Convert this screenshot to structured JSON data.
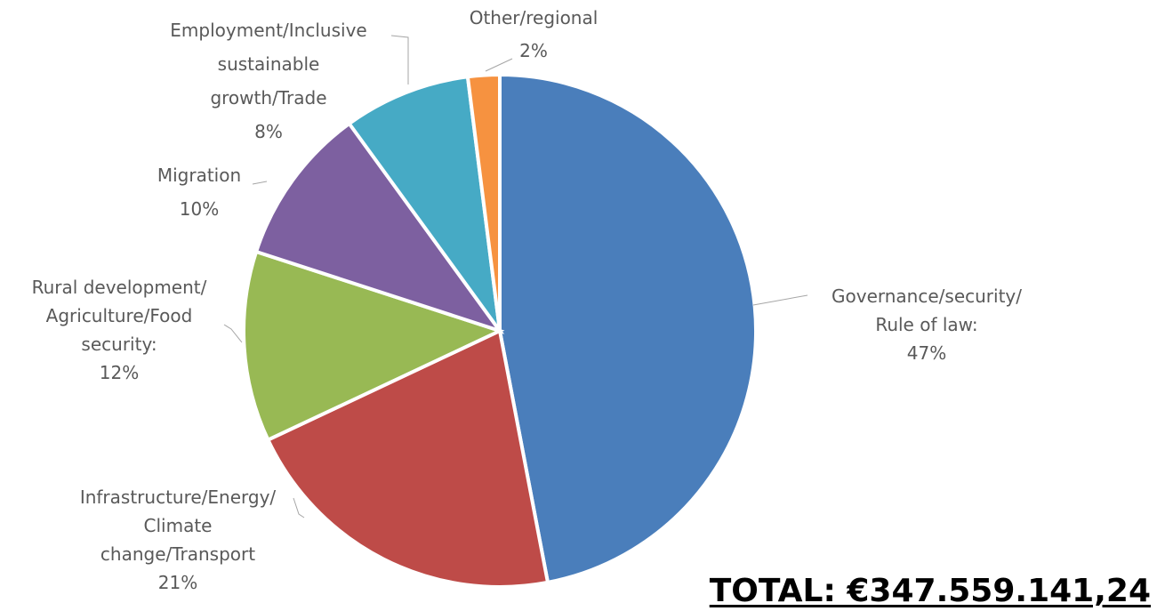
{
  "chart_data": {
    "type": "pie",
    "title": "",
    "categories": [
      "Governance/security/ Rule of law",
      "Infrastructure/Energy/ Climate change/Transport",
      "Rural development/ Agriculture/Food security",
      "Migration",
      "Employment/Inclusive sustainable growth/Trade",
      "Other/regional"
    ],
    "values": [
      47,
      21,
      12,
      10,
      8,
      2
    ],
    "unit": "%",
    "colors": [
      "#4a7ebb",
      "#be4b48",
      "#98b954",
      "#7d60a0",
      "#46aac5",
      "#f69240"
    ],
    "legend": "none",
    "start_angle": "12 o'clock",
    "direction": "clockwise",
    "data_labels": [
      {
        "lines": [
          "Governance/security/",
          "Rule of law:",
          "47%"
        ]
      },
      {
        "lines": [
          "Infrastructure/Energy/",
          "Climate",
          "change/Transport",
          "21%"
        ]
      },
      {
        "lines": [
          "Rural development/",
          "Agriculture/Food",
          "security:",
          "12%"
        ]
      },
      {
        "lines": [
          "Migration",
          "10%"
        ]
      },
      {
        "lines": [
          "Employment/Inclusive",
          "sustainable",
          "growth/Trade",
          "8%"
        ]
      },
      {
        "lines": [
          "Other/regional",
          "2%"
        ]
      }
    ]
  },
  "total_text": "TOTAL: €347.559.141,24"
}
